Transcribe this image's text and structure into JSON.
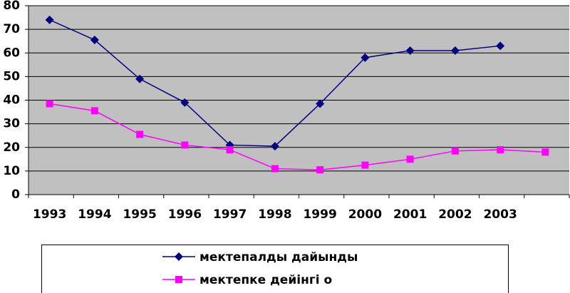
{
  "chart_data": {
    "type": "line",
    "categories": [
      "1993",
      "1994",
      "1995",
      "1996",
      "1997",
      "1998",
      "1999",
      "2000",
      "2001",
      "2002",
      "2003",
      null
    ],
    "series": [
      {
        "name": "мектепалды дайынды",
        "color": "#000080",
        "marker": "diamond",
        "values": [
          74,
          65.5,
          49,
          39,
          21,
          20.5,
          38.5,
          58,
          61,
          61,
          63,
          null
        ]
      },
      {
        "name": "мектепке дейінгі о",
        "color": "#ff00ff",
        "marker": "square",
        "values": [
          38.5,
          35.5,
          25.5,
          21,
          19,
          11,
          10.5,
          12.5,
          15,
          18.5,
          19,
          18
        ]
      }
    ],
    "ylim": [
      0,
      80
    ],
    "yticks": [
      0,
      10,
      20,
      30,
      40,
      50,
      60,
      70,
      80
    ],
    "grid": true,
    "background": "#c0c0c0",
    "legend": "bottom"
  }
}
